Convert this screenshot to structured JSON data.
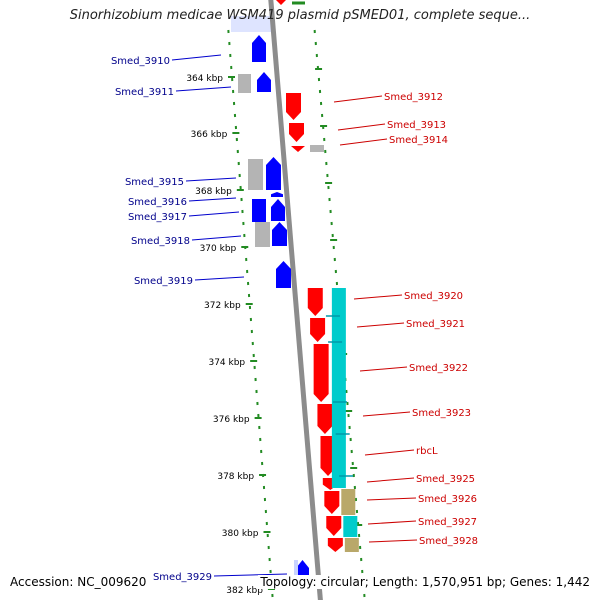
{
  "title": "Sinorhizobium medicae WSM419 plasmid pSMED01, complete seque...",
  "footer": {
    "accession": "Accession: NC_009620",
    "summary": "Topology: circular; Length: 1,570,951 bp; Genes: 1,442"
  },
  "colors": {
    "backbone": "#8c8c8c",
    "forward": "#0000ff",
    "reverse": "#ff0000",
    "pseudo": "#b4b4b4",
    "tick": "#228b22",
    "label_left": "#00008b",
    "label_right": "#cc0000",
    "band_cyan": "#00cccc",
    "band_olive": "#b9a86a",
    "highlight": "#c8d2ff"
  },
  "axis": {
    "unit": "kbp",
    "ticks": [
      "364 kbp",
      "366 kbp",
      "368 kbp",
      "370 kbp",
      "372 kbp",
      "374 kbp",
      "376 kbp",
      "378 kbp",
      "380 kbp",
      "382 kbp"
    ]
  },
  "genes_left": [
    "Smed_3910",
    "Smed_3911",
    "Smed_3915",
    "Smed_3916",
    "Smed_3917",
    "Smed_3918",
    "Smed_3919",
    "Smed_3929"
  ],
  "genes_right": [
    "Smed_3912",
    "Smed_3913",
    "Smed_3914",
    "Smed_3920",
    "Smed_3921",
    "Smed_3922",
    "Smed_3923",
    "rbcL",
    "Smed_3925",
    "Smed_3926",
    "Smed_3927",
    "Smed_3928"
  ]
}
